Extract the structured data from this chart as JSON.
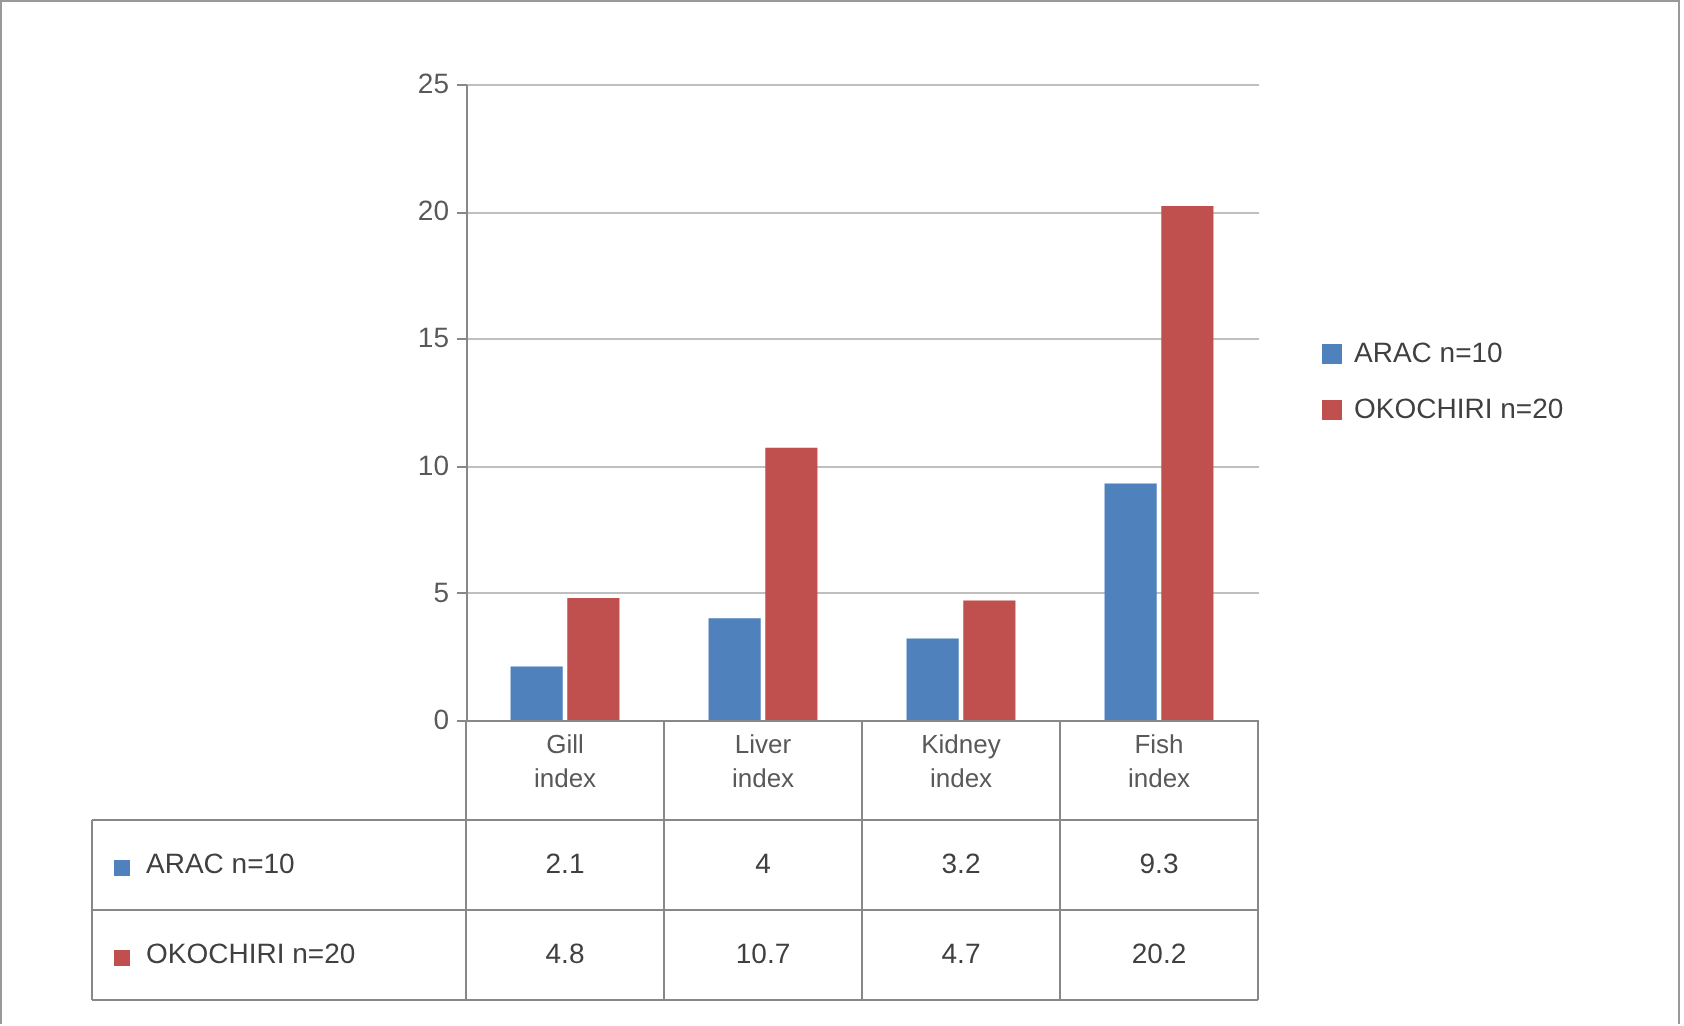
{
  "chart_data": {
    "type": "bar",
    "categories": [
      "Gill index",
      "Liver index",
      "Kidney index",
      "Fish index"
    ],
    "series": [
      {
        "name": "ARAC n=10",
        "color": "#4f81bd",
        "values": [
          2.1,
          4,
          3.2,
          9.3
        ]
      },
      {
        "name": "OKOCHIRI n=20",
        "color": "#c0504d",
        "values": [
          4.8,
          10.7,
          4.7,
          20.2
        ]
      }
    ],
    "ylim": [
      0,
      25
    ],
    "yticks": [
      0,
      5,
      10,
      15,
      20,
      25
    ],
    "grid": "y",
    "legend": "right",
    "data_labels": true
  }
}
